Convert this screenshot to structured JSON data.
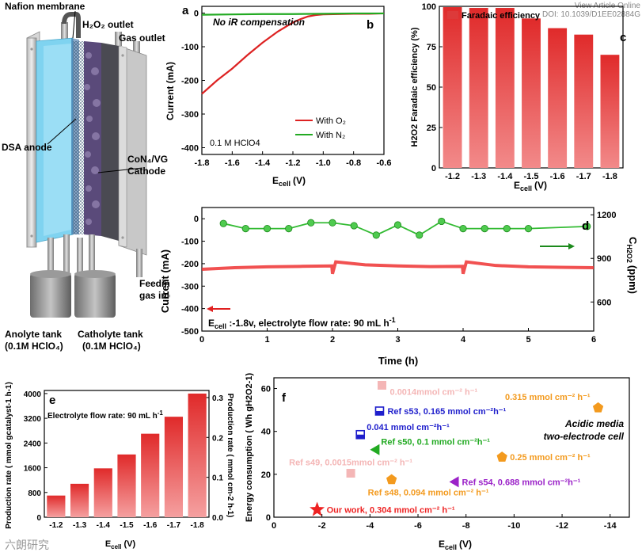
{
  "header": {
    "view_article": "View Article Online",
    "doi": "DOI: 10.1039/D1EE02884G"
  },
  "watermark": "六朗研究",
  "schematic": {
    "labels": {
      "nafion": "Nafion membrane",
      "h2o2_outlet": "H₂O₂ outlet",
      "gas_outlet": "Gas outlet",
      "dsa_anode": "DSA anode",
      "cathode_line1": "CoN₄/VG",
      "cathode_line2": "Cathode",
      "feeding_line1": "Feeding",
      "feeding_line2": "gas inlet",
      "anolyte_line1": "Anolyte tank",
      "anolyte_line2": "(0.1M HClO₄)",
      "catholyte_line1": "Catholyte tank",
      "catholyte_line2": "(0.1M HClO₄)"
    }
  },
  "chart_data": [
    {
      "panel": "a",
      "panel_b": "b",
      "type": "line",
      "annotation": "No iR compensation",
      "note": "0.1 M HClO4",
      "xlabel_main": "E",
      "xlabel_sub": "cell",
      "xlabel_unit": "(V)",
      "ylabel": "Current (mA)",
      "xlim": [
        -1.8,
        -0.6
      ],
      "ylim": [
        -420,
        20
      ],
      "x_ticks": [
        "-1.8",
        "-1.6",
        "-1.4",
        "-1.2",
        "-1.0",
        "-0.8",
        "-0.6"
      ],
      "y_ticks": [
        "0",
        "-100",
        "-200",
        "-300",
        "-400"
      ],
      "legend": [
        "With O₂",
        "With N₂"
      ],
      "series": [
        {
          "name": "With O₂",
          "color": "#dd2222",
          "x": [
            -1.8,
            -1.7,
            -1.6,
            -1.5,
            -1.4,
            -1.3,
            -1.2,
            -1.15,
            -1.1,
            -1.05,
            -1.0,
            -0.9,
            -0.8,
            -0.7,
            -0.6
          ],
          "y": [
            -240,
            -200,
            -165,
            -125,
            -88,
            -55,
            -28,
            -18,
            -10,
            -6,
            -4,
            -3,
            -2,
            -2,
            -1
          ]
        },
        {
          "name": "With N₂",
          "color": "#22aa22",
          "x": [
            -1.8,
            -1.6,
            -1.4,
            -1.2,
            -1.0,
            -0.8,
            -0.6
          ],
          "y": [
            -5,
            -4,
            -3,
            -3,
            -2,
            -1,
            -1
          ]
        }
      ]
    },
    {
      "panel": "c",
      "type": "bar",
      "legend": [
        "Faradaic efficiency"
      ],
      "ylabel": "H2O2 Faradaic efficiency (%)",
      "xlabel_main": "E",
      "xlabel_sub": "cell",
      "xlabel_unit": "(V)",
      "categories": [
        "-1.2",
        "-1.3",
        "-1.4",
        "-1.5",
        "-1.6",
        "-1.7",
        "-1.8"
      ],
      "values": [
        99.5,
        99,
        99,
        92.5,
        86.5,
        82.5,
        70
      ],
      "ylim": [
        0,
        100
      ],
      "y_ticks": [
        "0",
        "25",
        "50",
        "75",
        "100"
      ]
    },
    {
      "panel": "d",
      "type": "line",
      "ylabel": "Current (mA)",
      "ylabel_right_main": "C",
      "ylabel_right_sub": "H2O2",
      "ylabel_right_unit": "(ppm)",
      "xlabel": "Time (h)",
      "note_main": "E",
      "note_sub": "cell",
      "note_rest": " :-1.8v, electrolyte flow rate: 90 mL h",
      "note_sup": "-1",
      "xlim": [
        0,
        6
      ],
      "ylim": [
        -500,
        50
      ],
      "ylim_right": [
        400,
        1250
      ],
      "x_ticks": [
        "0",
        "1",
        "2",
        "3",
        "4",
        "5",
        "6"
      ],
      "y_ticks": [
        "0",
        "-100",
        "-200",
        "-300",
        "-400",
        "-500"
      ],
      "y_ticks_right": [
        "1200",
        "900",
        "600"
      ],
      "series": [
        {
          "name": "current",
          "color": "#ee3333",
          "x": [
            0,
            0.5,
            1,
            1.5,
            1.99,
            2.0,
            2.05,
            2.5,
            3,
            3.5,
            3.99,
            4.0,
            4.05,
            4.5,
            5,
            5.5,
            6
          ],
          "y": [
            -225,
            -218,
            -214,
            -212,
            -210,
            -245,
            -192,
            -205,
            -210,
            -213,
            -212,
            -245,
            -192,
            -208,
            -214,
            -216,
            -218
          ]
        },
        {
          "name": "concentration",
          "color": "#33bb33",
          "x": [
            0.33,
            0.67,
            1.0,
            1.33,
            1.67,
            2.0,
            2.33,
            2.67,
            3.0,
            3.33,
            3.67,
            4.0,
            4.33,
            4.67,
            5.0,
            5.9
          ],
          "y": [
            1140,
            1105,
            1105,
            1105,
            1145,
            1145,
            1125,
            1060,
            1130,
            1060,
            1155,
            1105,
            1105,
            1105,
            1105,
            1120
          ]
        }
      ]
    },
    {
      "panel": "e",
      "type": "bar",
      "note": "Electrolyte flow rate: 90 mL h",
      "note_sup": "-1",
      "ylabel": "Production rate ( mmol gcatalyst-1 h-1)",
      "ylabel_right": "Production rate ( mmol cm-2 h-1)",
      "xlabel_main": "E",
      "xlabel_sub": "cell",
      "xlabel_unit": "(V)",
      "categories": [
        "-1.2",
        "-1.3",
        "-1.4",
        "-1.5",
        "-1.6",
        "-1.7",
        "-1.8"
      ],
      "values": [
        700,
        1080,
        1580,
        2030,
        2700,
        3250,
        4000
      ],
      "ylim": [
        0,
        4100
      ],
      "y_ticks": [
        "0",
        "800",
        "1600",
        "2400",
        "3200",
        "4000"
      ],
      "y_ticks_right": [
        "0.0",
        "0.1",
        "0.2",
        "0.3"
      ]
    },
    {
      "panel": "f",
      "type": "scatter",
      "ylabel": "Energy consumption ( Wh gH2O2-1)",
      "xlabel_main": "E",
      "xlabel_sub": "cell",
      "xlabel_unit": "(V)",
      "xlim": [
        0,
        -14.8
      ],
      "ylim": [
        0,
        65
      ],
      "x_ticks": [
        "0",
        "-2",
        "-4",
        "-6",
        "-8",
        "-10",
        "-12",
        "-14"
      ],
      "y_ticks": [
        "0",
        "20",
        "40",
        "60"
      ],
      "annotation_line1": "Acidic media",
      "annotation_line2": "two-electrode cell",
      "points": [
        {
          "x": -1.8,
          "y": 3.5,
          "marker": "star",
          "color": "#ee2222",
          "label": "Our work, 0.304 mmol cm⁻² h⁻¹"
        },
        {
          "x": -4.5,
          "y": 61.5,
          "marker": "square",
          "color": "#f4b6b6",
          "label": "0.0014mmol cm⁻² h⁻¹"
        },
        {
          "x": -4.4,
          "y": 49.5,
          "marker": "square-half",
          "color": "#1f1fcc",
          "label": "Ref s53, 0.165 mmol cm⁻²h⁻¹"
        },
        {
          "x": -3.6,
          "y": 38.5,
          "marker": "square-half",
          "color": "#1f1fcc",
          "label": "0.041 mmol cm⁻²h⁻¹"
        },
        {
          "x": -4.2,
          "y": 31.5,
          "marker": "triangle",
          "color": "#22aa22",
          "label": "Ref s50, 0.1 mmol cm⁻²h⁻¹"
        },
        {
          "x": -3.2,
          "y": 20.5,
          "marker": "square",
          "color": "#f4b6b6",
          "label": "Ref s49, 0.0015mmol cm⁻² h⁻¹"
        },
        {
          "x": -4.9,
          "y": 17.5,
          "marker": "pentagon",
          "color": "#f39a1e",
          "label": "Ref s48, 0.094 mmol cm⁻² h⁻¹"
        },
        {
          "x": -7.5,
          "y": 16.5,
          "marker": "triangle",
          "color": "#9b22c8",
          "label": "Ref s54, 0.688 mmol cm⁻²h⁻¹"
        },
        {
          "x": -9.5,
          "y": 28,
          "marker": "pentagon",
          "color": "#f39a1e",
          "label": "0.25 mmol cm⁻² h⁻¹"
        },
        {
          "x": -13.5,
          "y": 51,
          "marker": "pentagon",
          "color": "#f39a1e",
          "label": "0.315 mmol cm⁻² h⁻¹"
        }
      ]
    }
  ]
}
